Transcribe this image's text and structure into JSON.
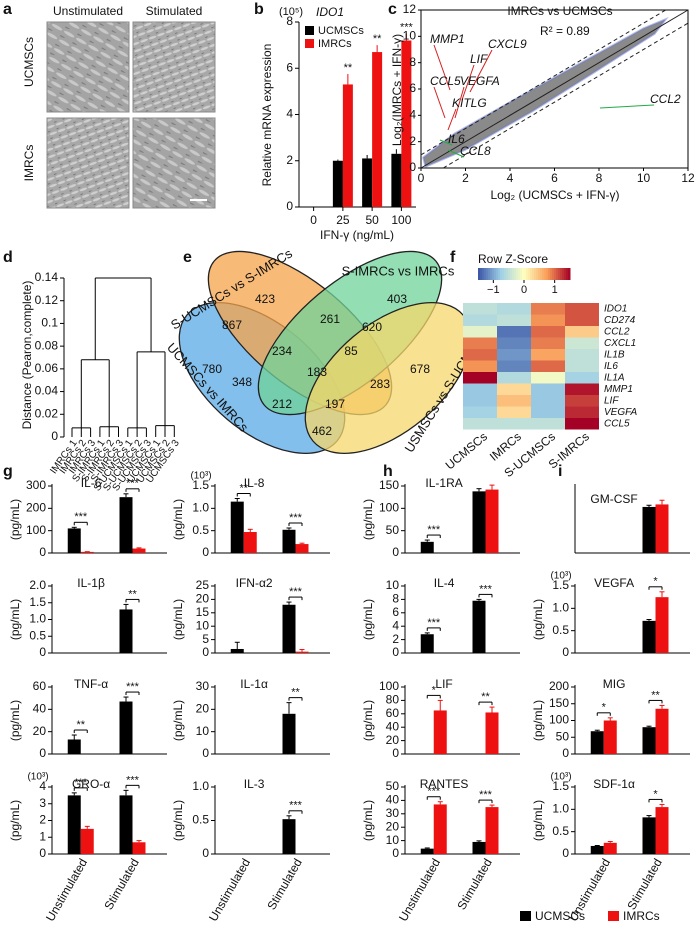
{
  "panel_labels": [
    "a",
    "b",
    "c",
    "d",
    "e",
    "f",
    "g",
    "h",
    "i"
  ],
  "micrographs": {
    "columns": [
      "Unstimulated",
      "Stimulated"
    ],
    "rows": [
      "UCMSCs",
      "IMRCs"
    ]
  },
  "venn": {
    "sets": [
      {
        "name": "S-UCMSCs vs S-IMRCs",
        "color": "#f5a34a"
      },
      {
        "name": "S-IMRCs vs IMRCs",
        "color": "#6fd39a"
      },
      {
        "name": "UCMSCs vs IMRCs",
        "color": "#5aa9e6"
      },
      {
        "name": "USMSCs vs S-UCMSCs",
        "color": "#f6d76b"
      }
    ],
    "regions": [
      423,
      403,
      780,
      867,
      261,
      620,
      678,
      234,
      85,
      348,
      183,
      283,
      212,
      197,
      462
    ]
  },
  "legend": [
    {
      "name": "UCMSCs",
      "color": "#000000"
    },
    {
      "name": "IMRCs",
      "color": "#ee1111"
    }
  ],
  "chart_data": [
    {
      "type": "grouped-bar",
      "title": "IDO1",
      "unit": "(10⁵)",
      "ylabel": "Relative mRNA expression",
      "xlabel": "IFN-γ (ng/mL)",
      "categories": [
        "0",
        "25",
        "50",
        "100"
      ],
      "series": [
        {
          "name": "UCMSCs",
          "color": "#000000",
          "values": [
            0,
            2.0,
            2.1,
            2.3
          ],
          "errors": [
            0,
            0.05,
            0.15,
            0.2
          ]
        },
        {
          "name": "IMRCs",
          "color": "#ee1111",
          "values": [
            0,
            5.3,
            6.7,
            7.2
          ],
          "errors": [
            0,
            0.45,
            0.3,
            0.3
          ]
        }
      ],
      "sig": [
        null,
        "**",
        "**",
        "***"
      ],
      "ylim": [
        0,
        8
      ],
      "yticks": [
        0,
        2,
        4,
        6,
        8
      ]
    },
    {
      "type": "scatter",
      "title": "IMRCs vs UCMSCs",
      "annotation": "R² = 0.89",
      "xlabel": "Log₂ (UCMSCs + IFN-γ)",
      "ylabel": "Log₂(IMRCs + IFN-γ)",
      "xlim": [
        0,
        12
      ],
      "ylim": [
        0,
        12
      ],
      "xticks": [
        0,
        2,
        4,
        6,
        8,
        10,
        12
      ],
      "yticks": [
        0,
        2,
        4,
        6,
        8,
        10,
        12
      ],
      "genes": [
        {
          "name": "MMP1",
          "color": "#d62020"
        },
        {
          "name": "CXCL9",
          "color": "#d62020"
        },
        {
          "name": "LIF",
          "color": "#d62020"
        },
        {
          "name": "CCL5",
          "color": "#d62020"
        },
        {
          "name": "VEGFA",
          "color": "#d62020"
        },
        {
          "name": "KITLG",
          "color": "#d62020"
        },
        {
          "name": "CCL2",
          "color": "#22aa44"
        },
        {
          "name": "IL6",
          "color": "#22aa44"
        },
        {
          "name": "CCL8",
          "color": "#22aa44"
        }
      ]
    },
    {
      "type": "dendrogram",
      "ylabel": "Distance (Pearon,complete)",
      "leaves": [
        "IMRCs 1",
        "IMRCs 2",
        "IMRCs 3",
        "S-IMRCs 1",
        "S-IMRCs 2",
        "S-IMRCs 3",
        "S-UCMSCs 1",
        "S-UCMSCs 2",
        "S-UCMSCs 3",
        "UCMSCs 1",
        "UCMSCs 2",
        "UCMSCs 3"
      ],
      "group_heights": [
        0.008,
        0.009,
        0.008,
        0.01
      ],
      "cluster_heights": [
        0.068,
        0.075
      ],
      "root_height": 0.14,
      "ylim": [
        0,
        0.14
      ],
      "yticks": [
        0,
        0.02,
        0.04,
        0.06,
        0.08,
        0.1,
        0.12,
        0.14
      ]
    },
    {
      "type": "heatmap",
      "title": "Row Z-Score",
      "rows": [
        "IDO1",
        "CD274",
        "CCL2",
        "CXCL1",
        "IL1B",
        "IL6",
        "IL1A",
        "MMP1",
        "LIF",
        "VEGFA",
        "CCL5"
      ],
      "columns": [
        "UCMSCs",
        "IMRCs",
        "S-UCMSCs",
        "S-IMRCs"
      ],
      "values": [
        [
          -0.5,
          -0.6,
          0.9,
          1.1
        ],
        [
          -0.6,
          -0.5,
          0.8,
          1.1
        ],
        [
          -0.2,
          -1.3,
          1.0,
          0.4
        ],
        [
          0.9,
          -1.2,
          0.9,
          -0.4
        ],
        [
          1.0,
          -1.1,
          0.7,
          -0.5
        ],
        [
          0.8,
          -1.2,
          1.0,
          -0.5
        ],
        [
          1.5,
          -0.6,
          -0.1,
          -0.7
        ],
        [
          -0.8,
          0.3,
          -0.8,
          1.4
        ],
        [
          -0.8,
          0.5,
          -0.8,
          1.2
        ],
        [
          -0.7,
          0.3,
          -0.8,
          1.3
        ],
        [
          -0.5,
          -0.5,
          -0.5,
          1.5
        ]
      ],
      "clim": [
        -1.5,
        1.5
      ],
      "cticks": [
        {
          "value": -1,
          "label": "−1"
        },
        0,
        1
      ],
      "colorscale": [
        "#3a53a4",
        "#9fd0e6",
        "#ffffbf",
        "#f99d59",
        "#a50026"
      ]
    },
    {
      "type": "bar",
      "title": "IL-6",
      "ylabel": "(pg/mL)",
      "series": [
        {
          "values": [
            110,
            250
          ],
          "errors": [
            5,
            15
          ]
        },
        {
          "values": [
            5,
            20
          ],
          "errors": [
            1,
            3
          ]
        }
      ],
      "sig": [
        "***",
        "***"
      ],
      "ylim": [
        0,
        300
      ],
      "yticks": [
        0,
        100,
        200,
        300
      ]
    },
    {
      "type": "bar",
      "title": "IL-8",
      "unit": "(10³)",
      "ylabel": "(pg/mL)",
      "series": [
        {
          "values": [
            1.15,
            0.52
          ],
          "errors": [
            0.07,
            0.04
          ]
        },
        {
          "values": [
            0.47,
            0.2
          ],
          "errors": [
            0.06,
            0.02
          ]
        }
      ],
      "sig": [
        "**",
        "***"
      ],
      "ylim": [
        0,
        1.5
      ],
      "yticks": [
        0,
        0.5,
        {
          "value": 1,
          "label": "1.0"
        },
        1.5
      ]
    },
    {
      "type": "bar",
      "title": "IL-1β",
      "ylabel": "(pg/mL)",
      "series": [
        {
          "values": [
            0,
            1.3
          ],
          "errors": [
            0,
            0.15
          ]
        },
        {
          "values": [
            0,
            0
          ],
          "errors": [
            0,
            0
          ]
        }
      ],
      "sig": [
        null,
        "**"
      ],
      "ylim": [
        0,
        2
      ],
      "yticks": [
        0,
        0.5,
        {
          "value": 1,
          "label": "1.0"
        },
        1.5,
        {
          "value": 2,
          "label": "2.0"
        }
      ]
    },
    {
      "type": "bar",
      "title": "IFN-α2",
      "ylabel": "(pg/mL)",
      "series": [
        {
          "values": [
            1.5,
            18
          ],
          "errors": [
            2.5,
            1
          ]
        },
        {
          "values": [
            0,
            0.5
          ],
          "errors": [
            0,
            0.8
          ]
        }
      ],
      "sig": [
        null,
        "***"
      ],
      "ylim": [
        0,
        25
      ],
      "yticks": [
        0,
        5,
        10,
        15,
        20,
        25
      ]
    },
    {
      "type": "bar",
      "title": "TNF-α",
      "ylabel": "(pg/mL)",
      "series": [
        {
          "values": [
            13,
            47
          ],
          "errors": [
            4,
            4
          ]
        },
        {
          "values": [
            0,
            0
          ],
          "errors": [
            0,
            0
          ]
        }
      ],
      "sig": [
        "**",
        "***"
      ],
      "ylim": [
        0,
        60
      ],
      "yticks": [
        0,
        20,
        40,
        60
      ]
    },
    {
      "type": "bar",
      "title": "IL-1α",
      "ylabel": "(pg/mL)",
      "series": [
        {
          "values": [
            0,
            18
          ],
          "errors": [
            0,
            5
          ]
        },
        {
          "values": [
            0,
            0
          ],
          "errors": [
            0,
            0
          ]
        }
      ],
      "sig": [
        null,
        "**"
      ],
      "ylim": [
        0,
        30
      ],
      "yticks": [
        0,
        10,
        20,
        30
      ]
    },
    {
      "type": "bar",
      "title": "GRO-α",
      "unit": "(10³)",
      "ylabel": "(pg/mL)",
      "categories": [
        "Unstimulated",
        "Stimulated"
      ],
      "series": [
        {
          "values": [
            3.5,
            3.5
          ],
          "errors": [
            0.15,
            0.3
          ]
        },
        {
          "values": [
            1.5,
            0.7
          ],
          "errors": [
            0.15,
            0.1
          ]
        }
      ],
      "sig": [
        "***",
        "***"
      ],
      "ylim": [
        0,
        4
      ],
      "yticks": [
        0,
        1,
        2,
        3,
        4
      ]
    },
    {
      "type": "bar",
      "title": "IL-3",
      "ylabel": "(pg/mL)",
      "categories": [
        "Unstimulated",
        "Stimulated"
      ],
      "series": [
        {
          "values": [
            0,
            0.52
          ],
          "errors": [
            0,
            0.05
          ]
        },
        {
          "values": [
            0,
            0
          ],
          "errors": [
            0,
            0
          ]
        }
      ],
      "sig": [
        null,
        "***"
      ],
      "ylim": [
        0,
        1
      ],
      "yticks": [
        0,
        0.5,
        {
          "value": 1,
          "label": "1.0"
        }
      ]
    },
    {
      "type": "bar",
      "title": "IL-1RA",
      "ylabel": "(pg/mL)",
      "series": [
        {
          "values": [
            25,
            138
          ],
          "errors": [
            4,
            6
          ]
        },
        {
          "values": [
            0,
            142
          ],
          "errors": [
            0,
            10
          ]
        }
      ],
      "sig": [
        "***",
        null
      ],
      "ylim": [
        0,
        150
      ],
      "yticks": [
        0,
        50,
        100,
        150
      ]
    },
    {
      "type": "bar",
      "title": "IL-4",
      "ylabel": "(pg/mL)",
      "series": [
        {
          "values": [
            2.8,
            7.8
          ],
          "errors": [
            0.2,
            0.2
          ]
        },
        {
          "values": [
            0,
            0
          ],
          "errors": [
            0,
            0
          ]
        }
      ],
      "sig": [
        "***",
        "***"
      ],
      "ylim": [
        0,
        10
      ],
      "yticks": [
        0,
        2,
        4,
        6,
        8,
        10
      ]
    },
    {
      "type": "bar",
      "title": "LIF",
      "ylabel": "(pg/mL)",
      "series": [
        {
          "values": [
            0,
            0
          ],
          "errors": [
            0,
            0
          ]
        },
        {
          "values": [
            65,
            62
          ],
          "errors": [
            15,
            8
          ]
        }
      ],
      "sig": [
        "*",
        "**"
      ],
      "ylim": [
        0,
        100
      ],
      "yticks": [
        0,
        20,
        40,
        60,
        80,
        100
      ]
    },
    {
      "type": "bar",
      "title": "RANTES",
      "ylabel": "(pg/mL)",
      "categories": [
        "Unstimulated",
        "Stimulated"
      ],
      "series": [
        {
          "values": [
            4,
            9
          ],
          "errors": [
            0.5,
            0.8
          ]
        },
        {
          "values": [
            37,
            35
          ],
          "errors": [
            2,
            1.5
          ]
        }
      ],
      "sig": [
        "***",
        "***"
      ],
      "ylim": [
        0,
        50
      ],
      "yticks": [
        0,
        10,
        20,
        30,
        40,
        50
      ]
    },
    {
      "type": "bar",
      "title": "GM-CSF",
      "series": [
        {
          "values": [
            0,
            5.5
          ],
          "errors": [
            0,
            0.2
          ]
        },
        {
          "values": [
            0,
            5.8
          ],
          "errors": [
            0,
            0.5
          ]
        }
      ],
      "sig": [
        null,
        null
      ],
      "ylim": [
        0,
        8
      ]
    },
    {
      "type": "bar",
      "title": "VEGFA",
      "unit": "(10³)",
      "ylabel": "(pg/mL)",
      "series": [
        {
          "values": [
            0,
            0.72
          ],
          "errors": [
            0,
            0.03
          ]
        },
        {
          "values": [
            0,
            1.25
          ],
          "errors": [
            0,
            0.12
          ]
        }
      ],
      "sig": [
        null,
        "*"
      ],
      "ylim": [
        0,
        1.5
      ],
      "yticks": [
        0,
        0.5,
        {
          "value": 1,
          "label": "1.0"
        },
        1.5
      ]
    },
    {
      "type": "bar",
      "title": "MIG",
      "ylabel": "(pg/mL)",
      "series": [
        {
          "values": [
            68,
            80
          ],
          "errors": [
            3,
            3
          ]
        },
        {
          "values": [
            100,
            135
          ],
          "errors": [
            8,
            10
          ]
        }
      ],
      "sig": [
        "*",
        "**"
      ],
      "ylim": [
        0,
        200
      ],
      "yticks": [
        0,
        50,
        100,
        150,
        200
      ]
    },
    {
      "type": "bar",
      "title": "SDF-1α",
      "unit": "(10³)",
      "ylabel": "(pg/mL)",
      "categories": [
        "Unstimulated",
        "Stimulated"
      ],
      "series": [
        {
          "values": [
            0.18,
            0.82
          ],
          "errors": [
            0.01,
            0.04
          ]
        },
        {
          "values": [
            0.25,
            1.05
          ],
          "errors": [
            0.03,
            0.06
          ]
        }
      ],
      "sig": [
        null,
        "*"
      ],
      "ylim": [
        0,
        1.5
      ],
      "yticks": [
        0,
        0.5,
        {
          "value": 1,
          "label": "1.0"
        },
        1.5
      ]
    }
  ]
}
